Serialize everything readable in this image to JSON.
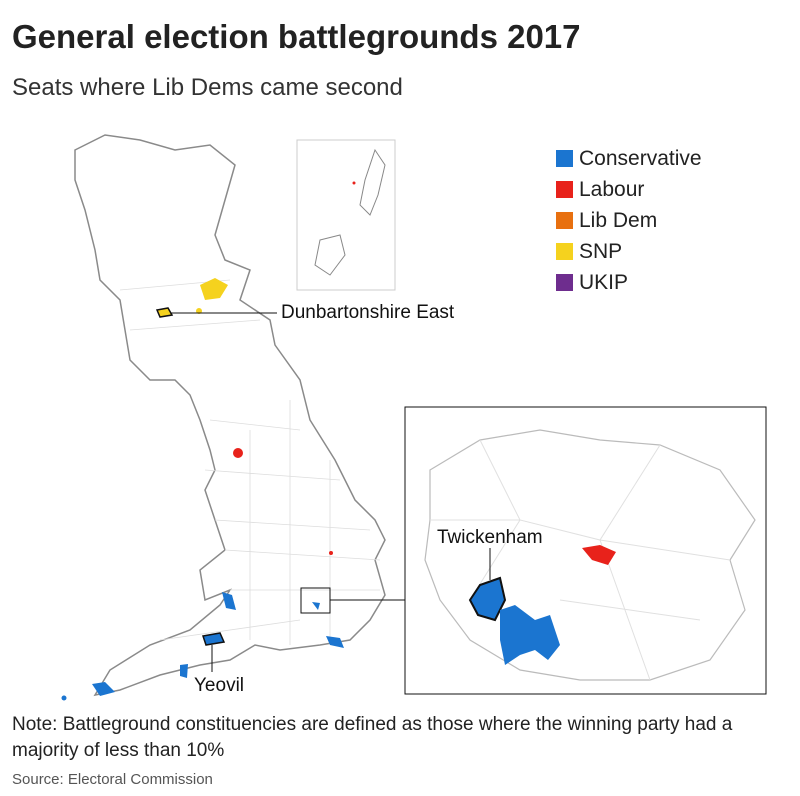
{
  "title": "General election battlegrounds 2017",
  "subtitle": "Seats where Lib Dems came second",
  "legend": [
    {
      "label": "Conservative",
      "color": "#1b75d0"
    },
    {
      "label": "Labour",
      "color": "#e8221b"
    },
    {
      "label": "Lib Dem",
      "color": "#e8700f"
    },
    {
      "label": "SNP",
      "color": "#f5d21e"
    },
    {
      "label": "UKIP",
      "color": "#6e2d8e"
    }
  ],
  "labels": {
    "dunbartonshire": "Dunbartonshire East",
    "yeovil": "Yeovil",
    "twickenham": "Twickenham"
  },
  "note": "Note: Battleground constituencies are defined as those where the winning party had a majority of less than 10%",
  "source": "Source: Electoral Commission"
}
